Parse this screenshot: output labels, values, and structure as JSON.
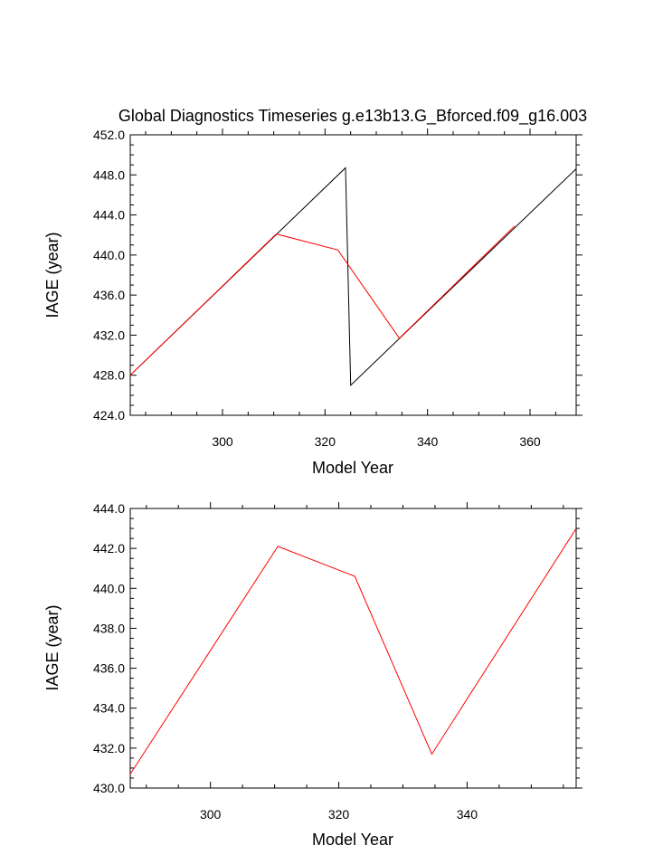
{
  "chart_data": [
    {
      "type": "line",
      "title": "Global Diagnostics Timeseries g.e13b13.G_Bforced.f09_g16.003",
      "xlabel": "Model Year",
      "ylabel": "IAGE (year)",
      "xlim": [
        282,
        369
      ],
      "ylim": [
        424.0,
        452.0
      ],
      "x_ticks": [
        300,
        320,
        340,
        360
      ],
      "y_ticks": [
        424.0,
        428.0,
        432.0,
        436.0,
        440.0,
        444.0,
        448.0,
        452.0
      ],
      "grid": false,
      "series": [
        {
          "color": "#000000",
          "points": [
            [
              282,
              428.0
            ],
            [
              324,
              448.7
            ],
            [
              325,
              427.0
            ],
            [
              369,
              448.6
            ]
          ]
        },
        {
          "color": "#ff0000",
          "points": [
            [
              282,
              428.0
            ],
            [
              310.5,
              442.1
            ],
            [
              322.5,
              440.5
            ],
            [
              334.5,
              431.7
            ],
            [
              357,
              442.9
            ]
          ]
        }
      ]
    },
    {
      "type": "line",
      "title": "",
      "xlabel": "Model Year",
      "ylabel": "IAGE (year)",
      "xlim": [
        287.5,
        357
      ],
      "ylim": [
        430.0,
        444.0
      ],
      "x_ticks": [
        300,
        320,
        340
      ],
      "y_ticks": [
        430.0,
        432.0,
        434.0,
        436.0,
        438.0,
        440.0,
        442.0,
        444.0
      ],
      "grid": false,
      "series": [
        {
          "color": "#ff0000",
          "points": [
            [
              287.5,
              430.7
            ],
            [
              310.5,
              442.1
            ],
            [
              322.5,
              440.6
            ],
            [
              334.5,
              431.7
            ],
            [
              357,
              443.0
            ]
          ]
        }
      ]
    }
  ]
}
